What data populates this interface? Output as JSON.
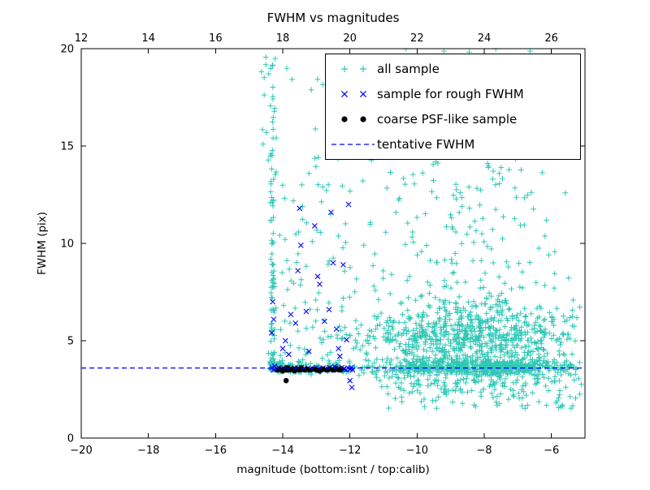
{
  "chart_data": {
    "type": "scatter",
    "title": "FWHM vs magnitudes",
    "xlabel": "magnitude (bottom:isnt / top:calib)",
    "ylabel": "FWHM (pix)",
    "background": "#ffffff",
    "frame_color": "#000000",
    "seed": 1337,
    "x_bottom": {
      "min": -20,
      "max": -5,
      "ticks": [
        -20,
        -18,
        -16,
        -14,
        -12,
        -10,
        -8,
        -6
      ],
      "tick_labels": [
        "−20",
        "−18",
        "−16",
        "−14",
        "−12",
        "−10",
        "−8",
        "−6"
      ]
    },
    "x_top": {
      "min": 12,
      "max": 27,
      "ticks": [
        12,
        14,
        16,
        18,
        20,
        22,
        24,
        26
      ],
      "tick_labels": [
        "12",
        "14",
        "16",
        "18",
        "20",
        "22",
        "24",
        "26"
      ]
    },
    "y_axis": {
      "min": 0,
      "max": 20,
      "ticks": [
        0,
        5,
        10,
        15,
        20
      ],
      "tick_labels": [
        "0",
        "5",
        "10",
        "15",
        "20"
      ]
    },
    "tentative_fwhm_y": 3.6,
    "legend": {
      "position": "upper-right",
      "entries": [
        {
          "label": "all sample",
          "marker": "plus",
          "color": "#2fc7b5"
        },
        {
          "label": "sample for rough FWHM",
          "marker": "cross",
          "color": "#0000ff"
        },
        {
          "label": "coarse PSF-like sample",
          "marker": "dot",
          "color": "#000000"
        },
        {
          "label": "tentative FWHM",
          "marker": "dashed-line",
          "color": "#0000ff"
        }
      ]
    },
    "series": [
      {
        "name": "all sample",
        "marker": "plus",
        "color": "#2fc7b5",
        "clusters": [
          {
            "n": 520,
            "x": {
              "dist": "gauss",
              "mean": -8.2,
              "sd": 1.7,
              "clip": [
                -12.35,
                -5.1
              ]
            },
            "y": {
              "dist": "gauss",
              "mean": 3.62,
              "sd": 0.18,
              "clip": [
                3.05,
                4.3
              ]
            }
          },
          {
            "n": 780,
            "x": {
              "dist": "gauss",
              "mean": -8.5,
              "sd": 1.55,
              "clip": [
                -12.35,
                -5.1
              ]
            },
            "y": {
              "dist": "gauss",
              "mean": 4.7,
              "sd": 1.25,
              "clip": [
                2.1,
                8.6
              ]
            }
          },
          {
            "n": 370,
            "x": {
              "dist": "gauss",
              "mean": -8.8,
              "sd": 1.75,
              "clip": [
                -13.6,
                -5.15
              ]
            },
            "y": {
              "dist": "pow",
              "min": 5.0,
              "max": 20.0,
              "exp": 2.1
            }
          },
          {
            "n": 90,
            "x": {
              "dist": "uniform",
              "min": -10.9,
              "max": -5.1
            },
            "y": {
              "dist": "uniform",
              "min": 1.5,
              "max": 3.15
            }
          },
          {
            "n": 115,
            "x": {
              "dist": "gauss",
              "mean": -14.3,
              "sd": 0.05,
              "clip": [
                -14.45,
                -14.12
              ]
            },
            "y": {
              "dist": "pow",
              "min": 3.5,
              "max": 20.0,
              "exp": 2.3
            }
          },
          {
            "n": 150,
            "x": {
              "dist": "uniform",
              "min": -14.1,
              "max": -11.95
            },
            "y": {
              "dist": "pow",
              "min": 3.4,
              "max": 19.5,
              "exp": 3.2
            }
          },
          {
            "n": 10,
            "x": {
              "dist": "gauss",
              "mean": -14.55,
              "sd": 0.06,
              "clip": [
                -14.7,
                -14.4
              ]
            },
            "y": {
              "dist": "uniform",
              "min": 13.5,
              "max": 19.8
            }
          },
          {
            "n": 60,
            "x": {
              "dist": "uniform",
              "min": -14.4,
              "max": -12.0
            },
            "y": {
              "dist": "gauss",
              "mean": 3.65,
              "sd": 0.18,
              "clip": [
                3.2,
                4.2
              ]
            }
          }
        ]
      },
      {
        "name": "sample for rough FWHM",
        "marker": "cross",
        "color": "#0000ff",
        "points": [
          [
            -14.32,
            3.62
          ],
          [
            -14.28,
            3.5
          ],
          [
            -14.24,
            3.7
          ],
          [
            -14.18,
            3.55
          ],
          [
            -14.12,
            3.62
          ],
          [
            -14.05,
            3.5
          ],
          [
            -13.98,
            3.6
          ],
          [
            -13.92,
            3.52
          ],
          [
            -13.85,
            3.62
          ],
          [
            -13.78,
            3.55
          ],
          [
            -13.72,
            3.5
          ],
          [
            -13.65,
            3.6
          ],
          [
            -13.58,
            3.55
          ],
          [
            -13.5,
            3.5
          ],
          [
            -13.44,
            3.62
          ],
          [
            -13.36,
            3.55
          ],
          [
            -13.3,
            3.5
          ],
          [
            -13.24,
            3.6
          ],
          [
            -13.16,
            3.55
          ],
          [
            -13.08,
            3.5
          ],
          [
            -13.0,
            3.62
          ],
          [
            -12.94,
            3.55
          ],
          [
            -12.88,
            3.5
          ],
          [
            -12.8,
            3.6
          ],
          [
            -12.74,
            3.55
          ],
          [
            -12.68,
            3.5
          ],
          [
            -12.6,
            3.62
          ],
          [
            -12.54,
            3.55
          ],
          [
            -12.48,
            3.5
          ],
          [
            -12.42,
            3.6
          ],
          [
            -12.36,
            3.55
          ],
          [
            -12.3,
            3.5
          ],
          [
            -12.24,
            3.62
          ],
          [
            -12.18,
            3.55
          ],
          [
            -12.12,
            3.5
          ],
          [
            -12.06,
            3.6
          ],
          [
            -12.0,
            3.55
          ],
          [
            -11.96,
            3.62
          ],
          [
            -11.92,
            3.5
          ],
          [
            -12.45,
            3.68
          ],
          [
            -14.3,
            7.0
          ],
          [
            -14.27,
            6.1
          ],
          [
            -14.33,
            5.4
          ],
          [
            -13.92,
            5.0
          ],
          [
            -13.76,
            6.35
          ],
          [
            -13.62,
            5.9
          ],
          [
            -13.55,
            8.6
          ],
          [
            -13.5,
            11.8
          ],
          [
            -13.46,
            9.9
          ],
          [
            -13.3,
            6.5
          ],
          [
            -13.22,
            4.45
          ],
          [
            -13.05,
            10.9
          ],
          [
            -12.96,
            8.3
          ],
          [
            -12.9,
            7.9
          ],
          [
            -12.76,
            6.0
          ],
          [
            -12.62,
            6.6
          ],
          [
            -12.56,
            11.6
          ],
          [
            -12.5,
            9.0
          ],
          [
            -12.4,
            5.6
          ],
          [
            -12.34,
            4.6
          ],
          [
            -12.2,
            8.9
          ],
          [
            -12.1,
            5.05
          ],
          [
            -12.04,
            12.0
          ],
          [
            -12.0,
            2.95
          ],
          [
            -11.94,
            2.6
          ],
          [
            -14.0,
            4.6
          ],
          [
            -13.82,
            4.3
          ],
          [
            -12.3,
            4.2
          ]
        ]
      },
      {
        "name": "coarse PSF-like sample",
        "marker": "dot",
        "color": "#000000",
        "points": [
          [
            -14.15,
            3.5
          ],
          [
            -14.1,
            3.55
          ],
          [
            -14.0,
            3.45
          ],
          [
            -13.95,
            3.55
          ],
          [
            -13.9,
            3.5
          ],
          [
            -13.85,
            3.6
          ],
          [
            -13.8,
            3.5
          ],
          [
            -13.7,
            3.55
          ],
          [
            -13.65,
            3.45
          ],
          [
            -13.6,
            3.55
          ],
          [
            -13.5,
            3.5
          ],
          [
            -13.45,
            3.6
          ],
          [
            -13.35,
            3.5
          ],
          [
            -13.3,
            3.55
          ],
          [
            -13.2,
            3.5
          ],
          [
            -13.1,
            3.55
          ],
          [
            -13.0,
            3.5
          ],
          [
            -12.9,
            3.45
          ],
          [
            -12.8,
            3.55
          ],
          [
            -12.7,
            3.5
          ],
          [
            -12.6,
            3.55
          ],
          [
            -12.5,
            3.5
          ],
          [
            -12.4,
            3.55
          ],
          [
            -12.3,
            3.5
          ],
          [
            -12.25,
            3.55
          ],
          [
            -13.9,
            2.95
          ]
        ]
      },
      {
        "name": "tentative FWHM",
        "marker": "dashed-line",
        "color": "#0000ff",
        "y": 3.6
      }
    ]
  }
}
